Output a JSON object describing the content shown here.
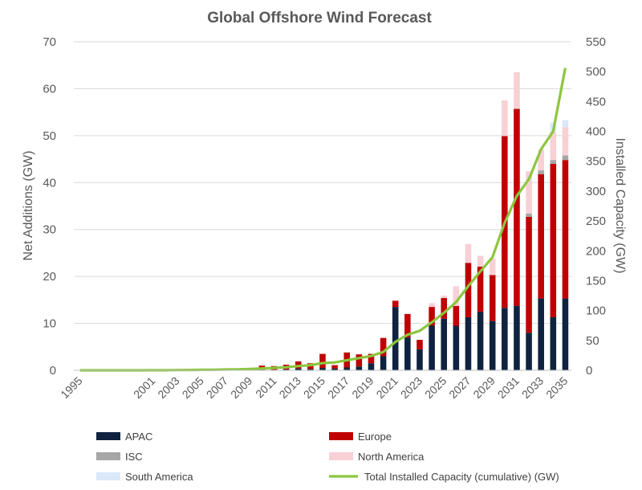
{
  "chart_data": {
    "type": "bar",
    "title": "Global Offshore Wind Forecast",
    "ylabel_left": "Net Additions (GW)",
    "ylabel_right": "Installed Capacity (GW)",
    "ylim_left": [
      0,
      70
    ],
    "ylim_right": [
      0,
      550
    ],
    "yticks_left": [
      "0",
      "10",
      "20",
      "30",
      "40",
      "50",
      "60",
      "70"
    ],
    "yticks_right": [
      "0",
      "50",
      "100",
      "150",
      "200",
      "250",
      "300",
      "350",
      "400",
      "450",
      "500",
      "550"
    ],
    "grid": true,
    "legend_position": "bottom",
    "x": [
      1995,
      1996,
      1997,
      1998,
      1999,
      2000,
      2001,
      2002,
      2003,
      2004,
      2005,
      2006,
      2007,
      2008,
      2009,
      2010,
      2011,
      2012,
      2013,
      2014,
      2015,
      2016,
      2017,
      2018,
      2019,
      2020,
      2021,
      2022,
      2023,
      2024,
      2025,
      2026,
      2027,
      2028,
      2029,
      2030,
      2031,
      2032,
      2033,
      2034,
      2035
    ],
    "x_tick_labels": [
      "1995",
      "2001",
      "2003",
      "2005",
      "2007",
      "2009",
      "2011",
      "2013",
      "2015",
      "2017",
      "2019",
      "2021",
      "2023",
      "2025",
      "2027",
      "2029",
      "2031",
      "2033",
      "2035"
    ],
    "series": [
      {
        "name": "APAC",
        "type": "bar",
        "color": "#0f2340",
        "values": [
          0,
          0,
          0,
          0,
          0,
          0,
          0,
          0,
          0,
          0,
          0,
          0,
          0,
          0,
          0,
          0.1,
          0.1,
          0.2,
          0.4,
          0.3,
          0.5,
          0.4,
          0.6,
          0.8,
          1.5,
          3.0,
          13.5,
          7.0,
          4.5,
          9.5,
          11.0,
          9.5,
          11.3,
          12.5,
          10.5,
          13.3,
          13.7,
          8.0,
          15.3,
          11.3,
          15.3
        ]
      },
      {
        "name": "Europe",
        "type": "bar",
        "color": "#c00000",
        "values": [
          0,
          0,
          0,
          0,
          0,
          0,
          0,
          0,
          0,
          0,
          0.1,
          0.2,
          0.3,
          0.3,
          0.5,
          0.9,
          0.8,
          1.0,
          1.5,
          1.2,
          3.0,
          0.7,
          3.2,
          2.6,
          2.0,
          3.9,
          1.3,
          5.0,
          2.0,
          4.0,
          4.4,
          4.2,
          11.6,
          9.6,
          9.8,
          36.6,
          42.0,
          24.7,
          26.5,
          32.7,
          29.5
        ]
      },
      {
        "name": "ISC",
        "type": "bar",
        "color": "#a6a6a6",
        "values": [
          0,
          0,
          0,
          0,
          0,
          0,
          0,
          0,
          0,
          0,
          0,
          0,
          0,
          0,
          0,
          0,
          0,
          0,
          0,
          0,
          0,
          0,
          0,
          0,
          0,
          0,
          0,
          0,
          0,
          0,
          0,
          0,
          0,
          0,
          0,
          0,
          0,
          0.7,
          0.8,
          0.8,
          1.0
        ]
      },
      {
        "name": "North America",
        "type": "bar",
        "color": "#f8d0d5",
        "values": [
          0,
          0,
          0,
          0,
          0,
          0,
          0,
          0,
          0,
          0,
          0,
          0,
          0,
          0,
          0,
          0,
          0,
          0,
          0,
          0,
          0,
          0,
          0,
          0,
          0,
          0,
          0.2,
          0,
          0,
          0.8,
          0.5,
          4.2,
          4.0,
          2.3,
          3.5,
          7.6,
          7.8,
          9.0,
          4.5,
          6.0,
          6.0
        ]
      },
      {
        "name": "South America",
        "type": "bar",
        "color": "#dae8fa",
        "values": [
          0,
          0,
          0,
          0,
          0,
          0,
          0,
          0,
          0,
          0,
          0,
          0,
          0,
          0,
          0,
          0,
          0,
          0,
          0,
          0,
          0,
          0,
          0,
          0,
          0,
          0,
          0,
          0,
          0,
          0,
          0,
          0,
          0,
          0,
          0,
          0,
          0,
          0,
          0,
          2.0,
          1.5
        ]
      },
      {
        "name": "Total Installed Capacity (cumulative) (GW)",
        "type": "line",
        "axis": "right",
        "color": "#8cc63f",
        "values": [
          0,
          0,
          0,
          0,
          0,
          0,
          0.1,
          0.2,
          0.4,
          0.6,
          0.8,
          1,
          1.3,
          1.6,
          2.1,
          3.1,
          4,
          5.2,
          7.1,
          8.6,
          12.1,
          13.2,
          17,
          20.4,
          23.9,
          30.8,
          47.6,
          59.6,
          66.1,
          80.4,
          96.3,
          114.2,
          141.1,
          165.5,
          189.3,
          246.8,
          292,
          320,
          370,
          400,
          506
        ]
      }
    ]
  }
}
